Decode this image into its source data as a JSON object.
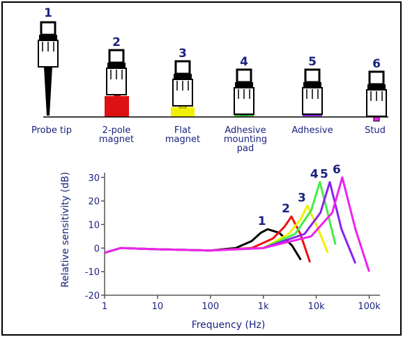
{
  "mountings": [
    {
      "number": "1",
      "label": "Probe tip"
    },
    {
      "number": "2",
      "label": "2-pole\nmagnet"
    },
    {
      "number": "3",
      "label": "Flat\nmagnet"
    },
    {
      "number": "4",
      "label": "Adhesive\nmounting\npad"
    },
    {
      "number": "5",
      "label": "Adhesive"
    },
    {
      "number": "6",
      "label": "Stud"
    }
  ],
  "chart_data": {
    "type": "line",
    "xlabel": "Frequency (Hz)",
    "ylabel": "Relative sensitivity (dB)",
    "xscale": "log",
    "xlim": [
      1,
      160000
    ],
    "ylim": [
      -20,
      32
    ],
    "xticks": [
      1,
      10,
      100,
      {
        "value": 1000,
        "label": "1k"
      },
      {
        "value": 10000,
        "label": "10k"
      },
      {
        "value": 100000,
        "label": "100k"
      }
    ],
    "yticks": [
      -20,
      -10,
      0,
      10,
      20,
      30
    ],
    "series": [
      {
        "name": "1",
        "color": "#000000",
        "x": [
          1,
          2,
          10,
          100,
          300,
          600,
          900,
          1200,
          2000,
          3500,
          5100
        ],
        "values": [
          -2,
          0,
          -0.5,
          -1,
          0,
          3,
          6.5,
          8,
          6.5,
          1,
          -5
        ]
      },
      {
        "name": "2",
        "color": "#ee1111",
        "x": [
          1,
          2,
          10,
          100,
          600,
          1500,
          2500,
          3400,
          5000,
          7600
        ],
        "values": [
          -2,
          0,
          -0.5,
          -1,
          0,
          4,
          9,
          13.4,
          6,
          -6
        ]
      },
      {
        "name": "3",
        "color": "#f0f000",
        "x": [
          1,
          2,
          10,
          100,
          1000,
          3000,
          5000,
          6800,
          10000,
          16600
        ],
        "values": [
          -2,
          0,
          -0.5,
          -1,
          0,
          6,
          12,
          18,
          10,
          -2
        ]
      },
      {
        "name": "4",
        "color": "#44ee44",
        "x": [
          1,
          2,
          10,
          100,
          1000,
          4000,
          8000,
          11700,
          16000,
          23000
        ],
        "values": [
          -2,
          0,
          -0.5,
          -1,
          0,
          6,
          16,
          28,
          16,
          1.5
        ]
      },
      {
        "name": "5",
        "color": "#8822ee",
        "x": [
          1,
          2,
          10,
          100,
          1000,
          6000,
          12000,
          18000,
          30000,
          55000
        ],
        "values": [
          -2,
          0,
          -0.5,
          -1,
          0,
          6,
          15,
          28,
          8,
          -6.5
        ]
      },
      {
        "name": "6",
        "color": "#ee22ee",
        "x": [
          1,
          2,
          10,
          100,
          1000,
          8000,
          20000,
          31000,
          55000,
          100000
        ],
        "values": [
          -2,
          0,
          -0.5,
          -1,
          0,
          5,
          15,
          30,
          8,
          -10
        ]
      }
    ]
  }
}
